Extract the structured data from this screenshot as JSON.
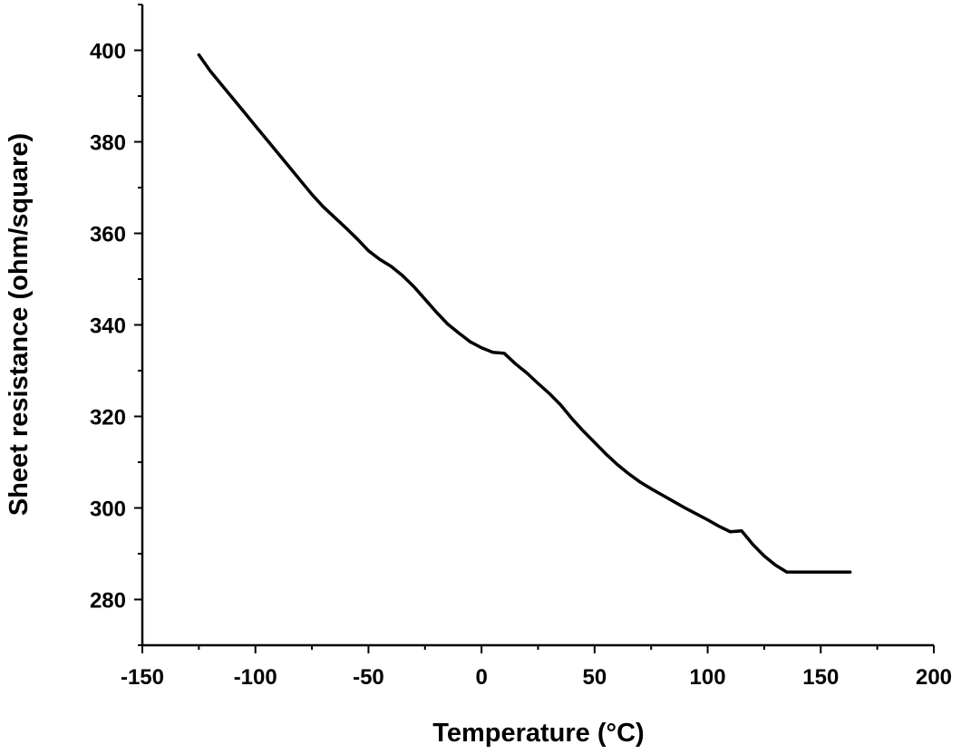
{
  "chart_data": {
    "type": "line",
    "xlabel": "Temperature (°C)",
    "ylabel": "Sheet resistance (ohm/square)",
    "xlim": [
      -150,
      200
    ],
    "ylim": [
      270,
      410
    ],
    "x_ticks": [
      -150,
      -100,
      -50,
      0,
      50,
      100,
      150,
      200
    ],
    "y_ticks": [
      280,
      300,
      320,
      340,
      360,
      380,
      400
    ],
    "x_tick_labels": [
      "-150",
      "-100",
      "-50",
      "0",
      "50",
      "100",
      "150",
      "200"
    ],
    "y_tick_labels": [
      "280",
      "300",
      "320",
      "340",
      "360",
      "380",
      "400"
    ],
    "grid": false,
    "legend": "none",
    "line_color": "#000000",
    "series": [
      {
        "x": [
          -125,
          -120,
          -115,
          -110,
          -105,
          -100,
          -95,
          -90,
          -85,
          -80,
          -75,
          -70,
          -65,
          -60,
          -55,
          -50,
          -45,
          -40,
          -35,
          -30,
          -25,
          -20,
          -15,
          -10,
          -5,
          0,
          5,
          10,
          15,
          20,
          25,
          30,
          35,
          40,
          45,
          50,
          55,
          60,
          65,
          70,
          75,
          80,
          85,
          90,
          95,
          100,
          105,
          110,
          115,
          120,
          125,
          130,
          135,
          140,
          145,
          150,
          155,
          160,
          163
        ],
        "y": [
          399,
          395.5,
          392.5,
          389.5,
          386.5,
          383.5,
          380.5,
          377.5,
          374.5,
          371.5,
          368.5,
          365.8,
          363.5,
          361.2,
          358.8,
          356.2,
          354.3,
          352.8,
          350.8,
          348.4,
          345.6,
          342.8,
          340.2,
          338.2,
          336.3,
          335,
          334,
          333.8,
          331.5,
          329.5,
          327.2,
          325,
          322.5,
          319.5,
          316.8,
          314.3,
          311.8,
          309.5,
          307.5,
          305.7,
          304.2,
          302.8,
          301.4,
          300,
          298.7,
          297.4,
          296,
          294.8,
          295,
          292,
          289.5,
          287.5,
          286,
          286,
          286,
          286,
          286,
          286,
          286
        ]
      }
    ]
  }
}
